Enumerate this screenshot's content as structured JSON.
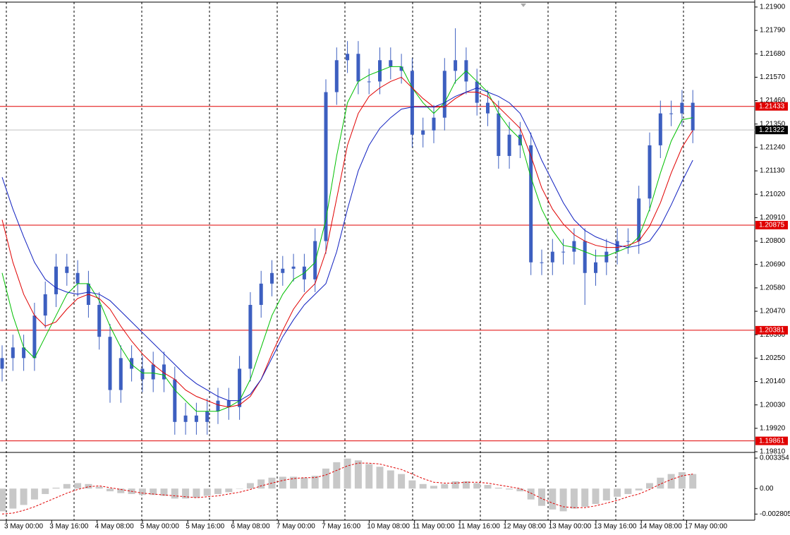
{
  "chart_data": [
    {
      "type": "candlestick",
      "color": "#3d5fc0",
      "ylim": [
        1.1981,
        1.21923
      ],
      "yticks": [
        {
          "value": 1.219,
          "label": "1.21900"
        },
        {
          "value": 1.2179,
          "label": "1.21790"
        },
        {
          "value": 1.2168,
          "label": "1.21680"
        },
        {
          "value": 1.2157,
          "label": "1.21570"
        },
        {
          "value": 1.2146,
          "label": "1.21460"
        },
        {
          "value": 1.2135,
          "label": "1.21350"
        },
        {
          "value": 1.2124,
          "label": "1.21240"
        },
        {
          "value": 1.2113,
          "label": "1.21130"
        },
        {
          "value": 1.2102,
          "label": "1.21020"
        },
        {
          "value": 1.2091,
          "label": "1.20910"
        },
        {
          "value": 1.208,
          "label": "1.20800"
        },
        {
          "value": 1.2069,
          "label": "1.20690"
        },
        {
          "value": 1.2058,
          "label": "1.20580"
        },
        {
          "value": 1.2047,
          "label": "1.20470"
        },
        {
          "value": 1.2036,
          "label": "1.20360"
        },
        {
          "value": 1.2025,
          "label": "1.20250"
        },
        {
          "value": 1.2014,
          "label": "1.20140"
        },
        {
          "value": 1.2003,
          "label": "1.20030"
        },
        {
          "value": 1.1992,
          "label": "1.19920"
        },
        {
          "value": 1.1981,
          "label": "1.19810"
        }
      ],
      "levels": [
        1.21433,
        1.20875,
        1.20381,
        1.19861
      ],
      "levels_color": "#e00000",
      "last_price": 1.21322,
      "open": [
        1.202,
        1.2025,
        1.203,
        1.2025,
        1.2045,
        1.2055,
        1.2068,
        1.2065,
        1.206,
        1.205,
        1.2035,
        1.201,
        1.2025,
        1.202,
        1.2015,
        1.2022,
        1.2015,
        1.1995,
        1.1998,
        1.1995,
        1.2,
        1.2005,
        1.2002,
        1.202,
        1.205,
        1.206,
        1.2065,
        1.2067,
        1.2068,
        1.2062,
        1.208,
        1.215,
        1.2165,
        1.2168,
        1.2155,
        1.2155,
        1.2165,
        1.2162,
        1.216,
        1.213,
        1.2132,
        1.2138,
        1.216,
        1.2165,
        1.2155,
        1.2145,
        1.214,
        1.212,
        1.213,
        1.2125,
        1.207,
        1.207,
        1.2075,
        1.2075,
        1.208,
        1.2065,
        1.207,
        1.2075,
        1.208,
        1.208,
        1.21,
        1.2125,
        1.214,
        1.214,
        1.2145
      ],
      "high": [
        1.2031,
        1.2036,
        1.2036,
        1.2051,
        1.2061,
        1.2074,
        1.2074,
        1.2071,
        1.2066,
        1.2056,
        1.2041,
        1.2031,
        1.2031,
        1.2026,
        1.2028,
        1.2028,
        1.2021,
        1.2004,
        1.2004,
        1.2006,
        1.2011,
        1.2011,
        1.2026,
        1.2056,
        1.2066,
        1.2071,
        1.2073,
        1.2074,
        1.2074,
        1.2086,
        1.2156,
        1.2171,
        1.2174,
        1.2174,
        1.2161,
        1.2171,
        1.2171,
        1.2168,
        1.2166,
        1.2138,
        1.2144,
        1.2166,
        1.218,
        1.2171,
        1.2161,
        1.2151,
        1.2146,
        1.2136,
        1.2136,
        1.2131,
        1.2076,
        1.2081,
        1.2081,
        1.2086,
        1.2086,
        1.2076,
        1.2081,
        1.2086,
        1.2086,
        1.2106,
        1.2131,
        1.2146,
        1.2146,
        1.2151,
        1.2151
      ],
      "low": [
        1.2014,
        1.2019,
        1.2019,
        1.2019,
        1.2039,
        1.2049,
        1.2059,
        1.2054,
        1.2044,
        1.2029,
        1.2004,
        1.2004,
        1.2014,
        1.2009,
        1.2009,
        1.2009,
        1.1989,
        1.1989,
        1.1989,
        1.1989,
        1.1994,
        1.1996,
        1.1996,
        1.2014,
        1.2044,
        1.2054,
        1.2059,
        1.2061,
        1.2056,
        1.2056,
        1.2074,
        1.2144,
        1.2159,
        1.2149,
        1.2149,
        1.2149,
        1.2156,
        1.2154,
        1.2124,
        1.2124,
        1.2126,
        1.2132,
        1.2154,
        1.2149,
        1.2139,
        1.2134,
        1.2114,
        1.2114,
        1.2119,
        1.2064,
        1.2064,
        1.2064,
        1.2069,
        1.2069,
        1.205,
        1.2059,
        1.2064,
        1.2069,
        1.2074,
        1.2074,
        1.2094,
        1.2119,
        1.2134,
        1.2134,
        1.2126
      ],
      "close": [
        1.2025,
        1.203,
        1.2025,
        1.2045,
        1.2055,
        1.2068,
        1.2065,
        1.206,
        1.205,
        1.2035,
        1.201,
        1.2025,
        1.202,
        1.2015,
        1.2022,
        1.2015,
        1.1995,
        1.1998,
        1.1995,
        1.2,
        1.2005,
        1.2002,
        1.202,
        1.205,
        1.206,
        1.2065,
        1.2067,
        1.2068,
        1.2062,
        1.208,
        1.215,
        1.2165,
        1.2168,
        1.2155,
        1.2155,
        1.2165,
        1.2162,
        1.216,
        1.213,
        1.2132,
        1.2138,
        1.216,
        1.2165,
        1.2155,
        1.2145,
        1.214,
        1.212,
        1.213,
        1.2125,
        1.207,
        1.207,
        1.2075,
        1.2075,
        1.208,
        1.2065,
        1.207,
        1.2075,
        1.208,
        1.208,
        1.21,
        1.2125,
        1.214,
        1.214,
        1.2145,
        1.2132
      ],
      "series": [
        {
          "color": "#00c000",
          "values": [
            1.2065,
            1.2045,
            1.203,
            1.2025,
            1.2035,
            1.2045,
            1.2055,
            1.206,
            1.206,
            1.2052,
            1.204,
            1.203,
            1.2022,
            1.2018,
            1.2018,
            1.2017,
            1.201,
            1.2005,
            1.2,
            1.2,
            1.2,
            1.2002,
            1.2005,
            1.2015,
            1.203,
            1.2045,
            1.2055,
            1.2062,
            1.2065,
            1.207,
            1.209,
            1.212,
            1.2145,
            1.2155,
            1.2158,
            1.216,
            1.2162,
            1.2162,
            1.2152,
            1.2145,
            1.214,
            1.2145,
            1.2155,
            1.216,
            1.2155,
            1.215,
            1.214,
            1.2133,
            1.2128,
            1.211,
            1.2095,
            1.2085,
            1.2078,
            1.2077,
            1.2075,
            1.2073,
            1.2073,
            1.2075,
            1.2077,
            1.2082,
            1.2095,
            1.2112,
            1.2127,
            1.2137,
            1.2138
          ]
        },
        {
          "color": "#e00000",
          "values": [
            1.209,
            1.207,
            1.2055,
            1.2045,
            1.204,
            1.2042,
            1.2048,
            1.2053,
            1.2055,
            1.2053,
            1.2048,
            1.204,
            1.2033,
            1.2027,
            1.2022,
            1.2018,
            1.2015,
            1.201,
            1.2007,
            1.2005,
            1.2003,
            1.2002,
            1.2003,
            1.2007,
            1.2015,
            1.2027,
            1.2038,
            1.2048,
            1.2055,
            1.206,
            1.2075,
            1.21,
            1.2125,
            1.214,
            1.2148,
            1.2152,
            1.2155,
            1.2157,
            1.2152,
            1.2147,
            1.2143,
            1.2143,
            1.2147,
            1.215,
            1.215,
            1.2148,
            1.2143,
            1.2138,
            1.2133,
            1.212,
            1.2105,
            1.2095,
            1.2088,
            1.2083,
            1.208,
            1.2078,
            1.2077,
            1.2077,
            1.2078,
            1.208,
            1.2087,
            1.2098,
            1.2112,
            1.2124,
            1.2132
          ]
        },
        {
          "color": "#1020c0",
          "values": [
            1.211,
            1.2095,
            1.2082,
            1.207,
            1.2062,
            1.2058,
            1.2056,
            1.2055,
            1.2056,
            1.2055,
            1.2052,
            1.2047,
            1.2042,
            1.2037,
            1.2032,
            1.2027,
            1.2022,
            1.2017,
            1.2013,
            1.201,
            1.2007,
            1.2005,
            1.2005,
            1.2008,
            1.2015,
            1.2025,
            1.2035,
            1.2043,
            1.205,
            1.2055,
            1.206,
            1.2075,
            1.2095,
            1.2113,
            1.2125,
            1.2133,
            1.2138,
            1.2142,
            1.2143,
            1.2143,
            1.2143,
            1.2145,
            1.2148,
            1.215,
            1.2152,
            1.215,
            1.2148,
            1.2145,
            1.214,
            1.213,
            1.2118,
            1.2108,
            1.2098,
            1.209,
            1.2085,
            1.2082,
            1.208,
            1.2078,
            1.2077,
            1.2078,
            1.208,
            1.2087,
            1.2097,
            1.2108,
            1.2118
          ]
        }
      ]
    },
    {
      "type": "macd",
      "ylim": [
        -0.0034,
        0.0039
      ],
      "yticks": [
        0.003354,
        {
          "value": 0,
          "label": "0.00"
        },
        -0.002805
      ],
      "histogram_color": "#c8c8c8",
      "signal_color": "#e00000",
      "histogram": [
        -0.0025,
        -0.0022,
        -0.0018,
        -0.0012,
        -0.0006,
        0.0001,
        0.0005,
        0.0006,
        0.0005,
        0.0002,
        -0.0003,
        -0.0005,
        -0.0006,
        -0.0007,
        -0.0007,
        -0.0008,
        -0.0011,
        -0.0011,
        -0.001,
        -0.0008,
        -0.0006,
        -0.0004,
        0.0,
        0.0006,
        0.001,
        0.0012,
        0.0013,
        0.0013,
        0.0012,
        0.0014,
        0.0022,
        0.0029,
        0.0033,
        0.0031,
        0.0027,
        0.0024,
        0.002,
        0.0016,
        0.0009,
        0.0005,
        0.0003,
        0.0005,
        0.0008,
        0.0008,
        0.0006,
        0.0004,
        0.0001,
        -0.0001,
        -0.0003,
        -0.0012,
        -0.0019,
        -0.0023,
        -0.0025,
        -0.0022,
        -0.002,
        -0.0017,
        -0.0013,
        -0.0009,
        -0.0006,
        -0.0002,
        0.0006,
        0.0012,
        0.0016,
        0.0018,
        0.0016
      ],
      "signal": [
        -0.0028,
        -0.0027,
        -0.0024,
        -0.002,
        -0.0015,
        -0.001,
        -0.0005,
        -0.0001,
        0.0002,
        0.0003,
        0.0001,
        -0.0001,
        -0.0003,
        -0.0005,
        -0.0006,
        -0.0007,
        -0.0008,
        -0.0009,
        -0.001,
        -0.0009,
        -0.0008,
        -0.0006,
        -0.0004,
        -0.0001,
        0.0003,
        0.0006,
        0.0009,
        0.0011,
        0.0012,
        0.0012,
        0.0015,
        0.002,
        0.0025,
        0.0028,
        0.0028,
        0.0027,
        0.0024,
        0.0021,
        0.0016,
        0.0011,
        0.0007,
        0.0006,
        0.0006,
        0.0007,
        0.0007,
        0.0006,
        0.0004,
        0.0002,
        0.0,
        -0.0005,
        -0.0011,
        -0.0016,
        -0.002,
        -0.0021,
        -0.0021,
        -0.0019,
        -0.0016,
        -0.0013,
        -0.0009,
        -0.0006,
        -0.0001,
        0.0005,
        0.001,
        0.0014,
        0.0016
      ],
      "x_labels": [
        "3 May 00:00",
        "3 May 16:00",
        "4 May 08:00",
        "5 May 00:00",
        "5 May 16:00",
        "6 May 08:00",
        "7 May 00:00",
        "7 May 16:00",
        "10 May 08:00",
        "11 May 00:00",
        "11 May 16:00",
        "12 May 08:00",
        "13 May 00:00",
        "13 May 16:00",
        "14 May 08:00",
        "17 May 00:00"
      ]
    }
  ]
}
